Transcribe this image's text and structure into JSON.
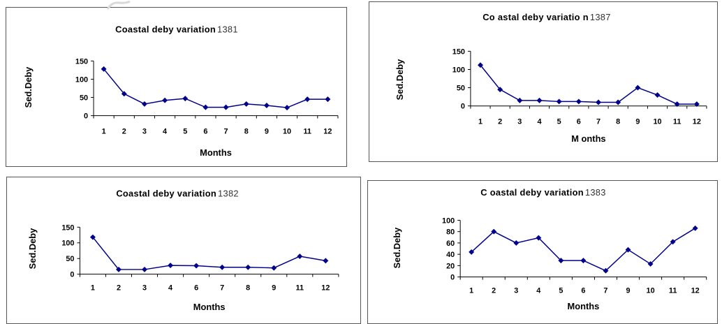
{
  "chart_data": [
    {
      "type": "line",
      "title": "Coastal deby variation",
      "title_year": "1381",
      "xlabel": "Months",
      "ylabel": "Sed.Deby",
      "categories": [
        "1",
        "2",
        "3",
        "4",
        "5",
        "6",
        "7",
        "8",
        "9",
        "10",
        "11",
        "12"
      ],
      "values": [
        128,
        60,
        32,
        42,
        47,
        23,
        23,
        32,
        28,
        22,
        45,
        45
      ],
      "yticks": [
        0,
        50,
        100,
        150
      ],
      "ylim": [
        0,
        150
      ],
      "color": "#00008b"
    },
    {
      "type": "line",
      "title": "Co astal deby variatio n",
      "title_year": "1387",
      "xlabel": "M onths",
      "ylabel": "Sed.Deby",
      "categories": [
        "1",
        "2",
        "3",
        "4",
        "5",
        "6",
        "7",
        "8",
        "9",
        "10",
        "11",
        "12"
      ],
      "values": [
        112,
        45,
        15,
        15,
        12,
        12,
        10,
        10,
        50,
        30,
        5,
        5
      ],
      "yticks": [
        0,
        50,
        100,
        150
      ],
      "ylim": [
        0,
        150
      ],
      "color": "#00008b"
    },
    {
      "type": "line",
      "title": "Coastal deby variation",
      "title_year": "1382",
      "xlabel": "Months",
      "ylabel": "Sed.Deby",
      "categories": [
        "1",
        "2",
        "3",
        "4",
        "6",
        "7",
        "8",
        "9",
        "11",
        "12"
      ],
      "values": [
        118,
        15,
        15,
        28,
        27,
        22,
        22,
        20,
        57,
        43
      ],
      "yticks": [
        0,
        50,
        100,
        150
      ],
      "ylim": [
        0,
        150
      ],
      "color": "#00008b"
    },
    {
      "type": "line",
      "title": "C oastal deby variation",
      "title_year": "1383",
      "xlabel": "Months",
      "ylabel": "Sed.Deby",
      "categories": [
        "1",
        "2",
        "3",
        "4",
        "5",
        "6",
        "7",
        "9",
        "10",
        "11",
        "12"
      ],
      "values": [
        44,
        80,
        60,
        69,
        29,
        29,
        11,
        48,
        23,
        62,
        86
      ],
      "yticks": [
        0,
        20,
        40,
        60,
        80,
        100
      ],
      "ylim": [
        0,
        100
      ],
      "color": "#00008b"
    }
  ]
}
